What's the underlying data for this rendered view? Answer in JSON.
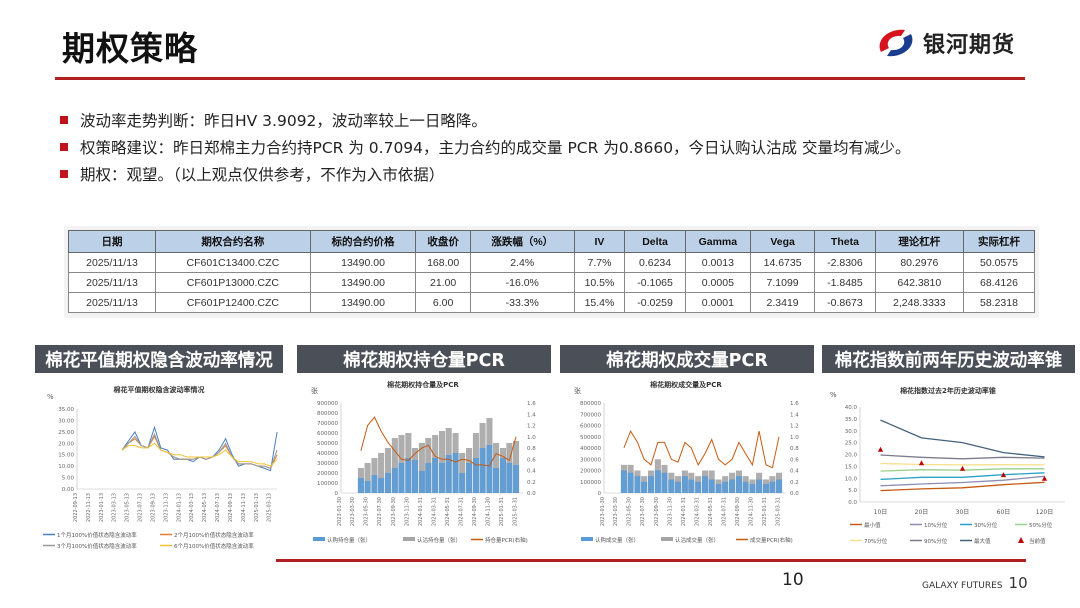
{
  "header": {
    "title": "期权策略",
    "logo_text": "银河期货",
    "brand_color": "#c0141c"
  },
  "bullets": [
    "波动率走势判断：昨日HV 3.9092，波动率较上一日略降。",
    "权策略建议：昨日郑棉主力合约持PCR 为 0.7094，主力合约的成交量 PCR 为0.8660，今日认购认沽成 交量均有减少。",
    "期权：观望。（以上观点仅供参考，不作为入市依据）"
  ],
  "table": {
    "headers": [
      "日期",
      "期权合约名称",
      "标的合约价格",
      "收盘价",
      "涨跌幅（%）",
      "IV",
      "Delta",
      "Gamma",
      "Vega",
      "Theta",
      "理论杠杆",
      "实际杠杆"
    ],
    "rows": [
      [
        "2025/11/13",
        "CF601C13400.CZC",
        "13490.00",
        "168.00",
        "2.4%",
        "7.7%",
        "0.6234",
        "0.0013",
        "14.6735",
        "-2.8306",
        "80.2976",
        "50.0575"
      ],
      [
        "2025/11/13",
        "CF601P13000.CZC",
        "13490.00",
        "21.00",
        "-16.0%",
        "10.5%",
        "-0.1065",
        "0.0005",
        "7.1099",
        "-1.8485",
        "642.3810",
        "68.4126"
      ],
      [
        "2025/11/13",
        "CF601P12400.CZC",
        "13490.00",
        "6.00",
        "-33.3%",
        "15.4%",
        "-0.0259",
        "0.0001",
        "2.3419",
        "-0.8673",
        "2,248.3333",
        "58.2318"
      ]
    ]
  },
  "sections": [
    "棉花平值期权隐含波动率情况",
    "棉花期权持仓量PCR",
    "棉花期权成交量PCR",
    "棉花指数前两年历史波动率锥"
  ],
  "chart_data": [
    {
      "type": "line",
      "title": "棉花平值期权隐含波动率情况",
      "ylabel": "%",
      "ylim": [
        0,
        35
      ],
      "yticks": [
        "0.00",
        "5.00",
        "10.00",
        "15.00",
        "20.00",
        "25.00",
        "30.00",
        "35.00"
      ],
      "xticks": [
        "2022-09-13",
        "2022-11-13",
        "2023-01-13",
        "2023-03-13",
        "2023-05-13",
        "2023-07-13",
        "2023-09-13",
        "2023-11-13",
        "2024-01-13",
        "2024-03-13",
        "2024-05-13",
        "2024-07-13",
        "2024-09-13",
        "2024-11-13",
        "2025-01-13",
        "2025-03-13"
      ],
      "x": [
        "2023-04-13",
        "2023-05-13",
        "2023-06-13",
        "2023-07-13",
        "2023-08-13",
        "2023-09-13",
        "2023-10-13",
        "2023-11-13",
        "2023-12-13",
        "2024-01-13",
        "2024-02-13",
        "2024-03-13",
        "2024-04-13",
        "2024-05-13",
        "2024-06-13",
        "2024-07-13",
        "2024-08-13",
        "2024-09-13",
        "2024-10-13",
        "2024-11-13",
        "2024-12-13",
        "2025-01-13",
        "2025-02-13",
        "2025-03-13",
        "2025-04-13"
      ],
      "series": [
        {
          "name": "1个月100%价值状态隐含波动率",
          "color": "#4a7fc0",
          "values": [
            17,
            21,
            25,
            19,
            18,
            27,
            18,
            17,
            13,
            13,
            13,
            12,
            14,
            13,
            14,
            17,
            22,
            15,
            10,
            11,
            11,
            10,
            9,
            8,
            25
          ]
        },
        {
          "name": "2个月100%价值状态隐含波动率",
          "color": "#e07b30",
          "values": [
            17,
            20,
            22,
            19,
            18,
            23,
            17,
            16,
            14,
            13,
            13,
            13,
            14,
            13,
            14,
            16,
            19,
            14,
            11,
            11,
            11,
            10,
            10,
            9,
            15
          ]
        },
        {
          "name": "3个月100%价值状态隐含波动率",
          "color": "#9a9a9a",
          "values": [
            17,
            20,
            23,
            19,
            18,
            24,
            17,
            16,
            14,
            13,
            13,
            13,
            14,
            13,
            14,
            16,
            20,
            14,
            11,
            11,
            11,
            10,
            10,
            9,
            17
          ]
        },
        {
          "name": "6个月100%价值状态隐含波动率",
          "color": "#f2c230",
          "values": [
            17,
            19,
            19,
            18,
            18,
            20,
            17,
            16,
            15,
            15,
            14,
            14,
            14,
            14,
            14,
            15,
            17,
            14,
            12,
            12,
            12,
            11,
            11,
            10,
            13
          ]
        }
      ]
    },
    {
      "type": "bar+line",
      "title": "棉花期权持仓量及PCR",
      "ylabel": "张",
      "ylim": [
        0,
        900000
      ],
      "y2lim": [
        0,
        1.6
      ],
      "yticks": [
        "0",
        "100000",
        "200000",
        "300000",
        "400000",
        "500000",
        "600000",
        "700000",
        "800000",
        "900000"
      ],
      "y2ticks": [
        "0.0",
        "0.2",
        "0.4",
        "0.6",
        "0.8",
        "1.0",
        "1.2",
        "1.4",
        "1.6"
      ],
      "xticks": [
        "2023-01-30",
        "2023-03-30",
        "2023-05-30",
        "2023-07-30",
        "2023-09-30",
        "2023-11-30",
        "2024-01-31",
        "2024-03-31",
        "2024-05-31",
        "2024-07-31",
        "2024-09-30",
        "2024-11-30",
        "2025-01-31",
        "2025-03-31"
      ],
      "x": [
        "2023-04-30",
        "2023-05-30",
        "2023-06-30",
        "2023-07-30",
        "2023-08-30",
        "2023-09-30",
        "2023-10-30",
        "2023-11-30",
        "2023-12-30",
        "2024-01-30",
        "2024-02-28",
        "2024-03-30",
        "2024-04-30",
        "2024-05-30",
        "2024-06-30",
        "2024-07-30",
        "2024-08-30",
        "2024-09-30",
        "2024-10-30",
        "2024-11-30",
        "2024-12-30",
        "2025-01-30",
        "2025-02-28",
        "2025-03-30"
      ],
      "series": [
        {
          "name": "认购持仓量（张）",
          "kind": "bar",
          "color": "#5b9bd5",
          "values": [
            150000,
            120000,
            180000,
            150000,
            200000,
            250000,
            300000,
            350000,
            330000,
            220000,
            300000,
            350000,
            300000,
            380000,
            400000,
            200000,
            300000,
            350000,
            450000,
            480000,
            250000,
            350000,
            300000,
            280000
          ]
        },
        {
          "name": "认沽持仓量（张）",
          "kind": "bar",
          "color": "#a5a5a5",
          "values": [
            250000,
            300000,
            350000,
            400000,
            450000,
            550000,
            580000,
            600000,
            450000,
            500000,
            550000,
            580000,
            620000,
            650000,
            600000,
            400000,
            450000,
            600000,
            700000,
            750000,
            500000,
            450000,
            500000,
            520000
          ]
        },
        {
          "name": "持仓量PCR(右轴)",
          "kind": "line",
          "axis": "right",
          "color": "#c55a11",
          "values": [
            0.75,
            1.2,
            1.35,
            1.1,
            0.9,
            0.75,
            0.6,
            0.58,
            0.7,
            0.8,
            0.85,
            0.65,
            0.6,
            0.6,
            0.55,
            0.6,
            0.58,
            0.5,
            0.5,
            0.48,
            0.7,
            0.65,
            0.58,
            1.0
          ]
        }
      ]
    },
    {
      "type": "bar+line",
      "title": "棉花期权成交量及PCR",
      "ylabel": "张",
      "ylim": [
        0,
        800000
      ],
      "y2lim": [
        0,
        1.6
      ],
      "yticks": [
        "0",
        "100000",
        "200000",
        "300000",
        "400000",
        "500000",
        "600000",
        "700000",
        "800000"
      ],
      "y2ticks": [
        "0.0",
        "0.2",
        "0.4",
        "0.6",
        "0.8",
        "1.0",
        "1.2",
        "1.4",
        "1.6"
      ],
      "xticks": [
        "2023-01-30",
        "2023-03-30",
        "2023-05-30",
        "2023-07-30",
        "2023-09-30",
        "2023-11-30",
        "2024-01-31",
        "2024-03-31",
        "2024-05-31",
        "2024-07-31",
        "2024-09-30",
        "2024-11-30",
        "2025-01-31",
        "2025-03-31"
      ],
      "x": [
        "2023-04-30",
        "2023-05-30",
        "2023-06-30",
        "2023-07-30",
        "2023-08-30",
        "2023-09-30",
        "2023-10-30",
        "2023-11-30",
        "2023-12-30",
        "2024-01-30",
        "2024-02-28",
        "2024-03-30",
        "2024-04-30",
        "2024-05-30",
        "2024-06-30",
        "2024-07-30",
        "2024-08-30",
        "2024-09-30",
        "2024-10-30",
        "2024-11-30",
        "2024-12-30",
        "2025-01-30",
        "2025-02-28",
        "2025-03-30"
      ],
      "series": [
        {
          "name": "认购成交量（张）",
          "kind": "bar",
          "color": "#5b9bd5",
          "values": [
            200000,
            180000,
            150000,
            100000,
            150000,
            200000,
            180000,
            120000,
            100000,
            150000,
            120000,
            100000,
            150000,
            120000,
            80000,
            100000,
            120000,
            150000,
            100000,
            80000,
            120000,
            80000,
            100000,
            120000
          ]
        },
        {
          "name": "认沽成交量（张）",
          "kind": "bar",
          "color": "#a5a5a5",
          "values": [
            250000,
            250000,
            200000,
            150000,
            200000,
            300000,
            250000,
            180000,
            150000,
            200000,
            180000,
            150000,
            200000,
            200000,
            120000,
            150000,
            180000,
            200000,
            150000,
            120000,
            180000,
            120000,
            150000,
            180000
          ]
        },
        {
          "name": "成交量PCR(右轴)",
          "kind": "line",
          "axis": "right",
          "color": "#c55a11",
          "values": [
            0.8,
            1.1,
            0.9,
            0.6,
            0.5,
            0.9,
            0.9,
            0.6,
            0.55,
            0.9,
            0.8,
            0.5,
            0.7,
            0.95,
            0.6,
            0.5,
            0.6,
            0.9,
            0.7,
            0.5,
            1.1,
            0.5,
            0.45,
            1.0
          ]
        }
      ]
    },
    {
      "type": "line",
      "title": "棉花指数过去2年历史波动率锥",
      "ylabel": "%",
      "ylim": [
        0,
        40
      ],
      "yticks": [
        "0.0",
        "5.0",
        "10.0",
        "15.0",
        "20.0",
        "25.0",
        "30.0",
        "35.0",
        "40.0"
      ],
      "categories": [
        "10日",
        "20日",
        "30日",
        "60日",
        "120日"
      ],
      "series": [
        {
          "name": "最小值",
          "color": "#c55a11",
          "values": [
            4.8,
            5.5,
            6.0,
            7.3,
            8.3
          ]
        },
        {
          "name": "10%分位",
          "color": "#8c8cb4",
          "values": [
            6.8,
            7.6,
            8.2,
            9.2,
            10.8
          ]
        },
        {
          "name": "30%分位",
          "color": "#2aa3c8",
          "values": [
            9.5,
            10.4,
            10.4,
            11.5,
            12.3
          ]
        },
        {
          "name": "50%分位",
          "color": "#9dd08c",
          "values": [
            13.0,
            13.6,
            13.4,
            14.0,
            14.0
          ]
        },
        {
          "name": "70%分位",
          "color": "#f5e08a",
          "values": [
            16.2,
            15.8,
            15.6,
            15.7,
            15.6
          ]
        },
        {
          "name": "90%分位",
          "color": "#7b7b8c",
          "values": [
            19.8,
            18.8,
            18.2,
            18.8,
            18.5
          ]
        },
        {
          "name": "最大值",
          "color": "#44617b",
          "values": [
            34.5,
            27.0,
            25.0,
            20.8,
            19.0
          ]
        },
        {
          "name": "当前值",
          "kind": "marker",
          "color": "#c00000",
          "values": [
            22.0,
            16.3,
            14.0,
            11.3,
            9.8
          ]
        }
      ]
    }
  ],
  "footer": {
    "page": "10",
    "brand": "GALAXY FUTURES",
    "page2": "10"
  }
}
